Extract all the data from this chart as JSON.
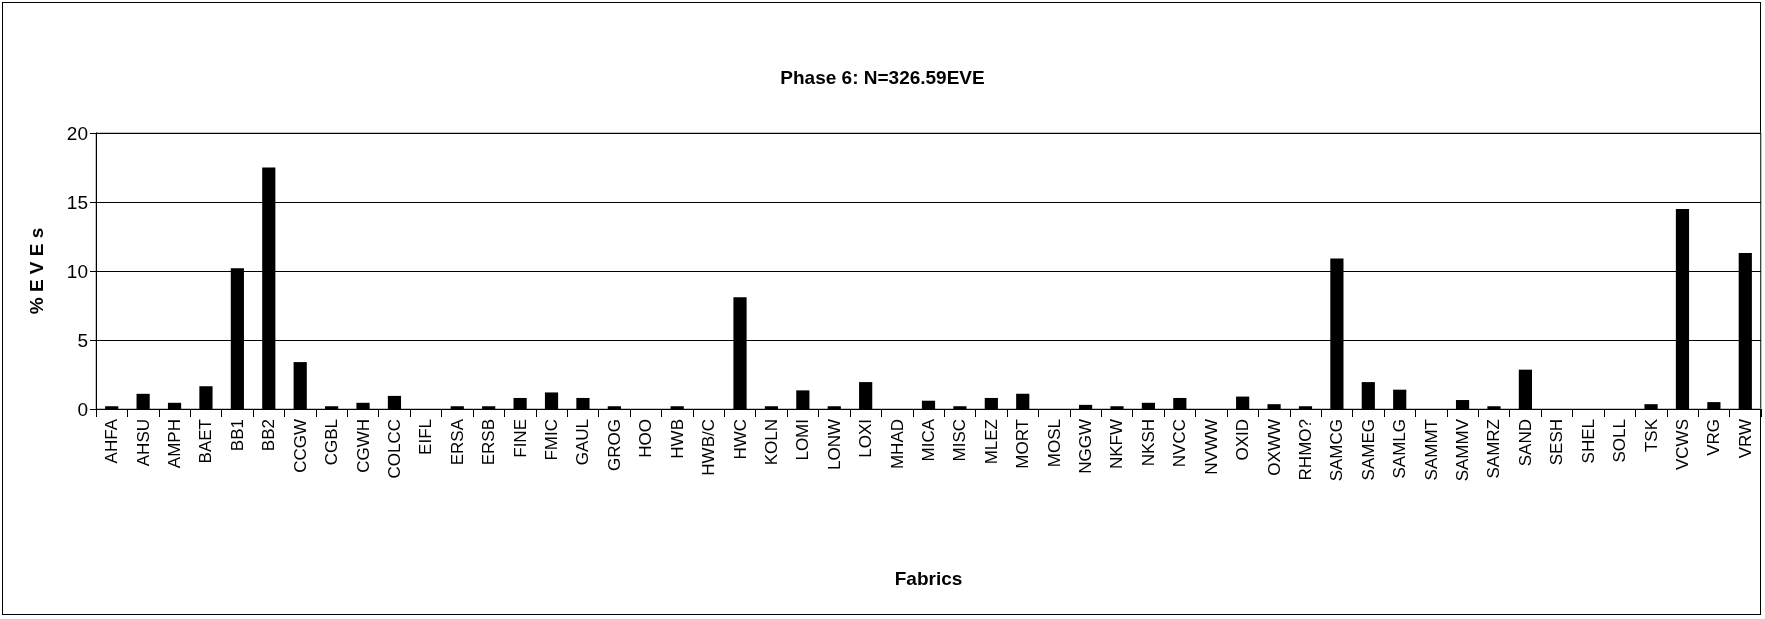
{
  "chart_data": {
    "type": "bar",
    "title": "Phase 6: N=326.59EVE",
    "xlabel": "Fabrics",
    "ylabel": "% E V E s",
    "categories": [
      "AHFA",
      "AHSU",
      "AMPH",
      "BAET",
      "BB1",
      "BB2",
      "CCGW",
      "CGBL",
      "CGWH",
      "COLCC",
      "EIFL",
      "ERSA",
      "ERSB",
      "FINE",
      "FMIC",
      "GAUL",
      "GROG",
      "HOO",
      "HWB",
      "HWB/C",
      "HWC",
      "KOLN",
      "LOMI",
      "LONW",
      "LOXI",
      "MHAD",
      "MICA",
      "MISC",
      "MLEZ",
      "MORT",
      "MOSL",
      "NGGW",
      "NKFW",
      "NKSH",
      "NVCC",
      "NVWW",
      "OXID",
      "OXWW",
      "RHMO?",
      "SAMCG",
      "SAMEG",
      "SAMLG",
      "SAMMT",
      "SAMMV",
      "SAMRZ",
      "SAND",
      "SESH",
      "SHEL",
      "SOLL",
      "TSK",
      "VCWS",
      "VRG",
      "VRW"
    ],
    "values": [
      0.2,
      1.1,
      0.45,
      1.65,
      10.2,
      17.5,
      3.4,
      0.2,
      0.45,
      0.95,
      0,
      0.2,
      0.2,
      0.8,
      1.2,
      0.8,
      0.2,
      0,
      0.2,
      0,
      8.1,
      0.2,
      1.35,
      0.2,
      1.95,
      0,
      0.6,
      0.2,
      0.8,
      1.1,
      0,
      0.3,
      0.2,
      0.45,
      0.8,
      0,
      0.9,
      0.35,
      0.2,
      10.9,
      1.95,
      1.4,
      0,
      0.65,
      0.2,
      2.85,
      0,
      0,
      0,
      0.35,
      14.5,
      0.5,
      11.3
    ],
    "color": "#000000",
    "ylim": [
      0,
      20
    ],
    "yticks": [
      0,
      5,
      10,
      15,
      20
    ],
    "grid": "y"
  }
}
